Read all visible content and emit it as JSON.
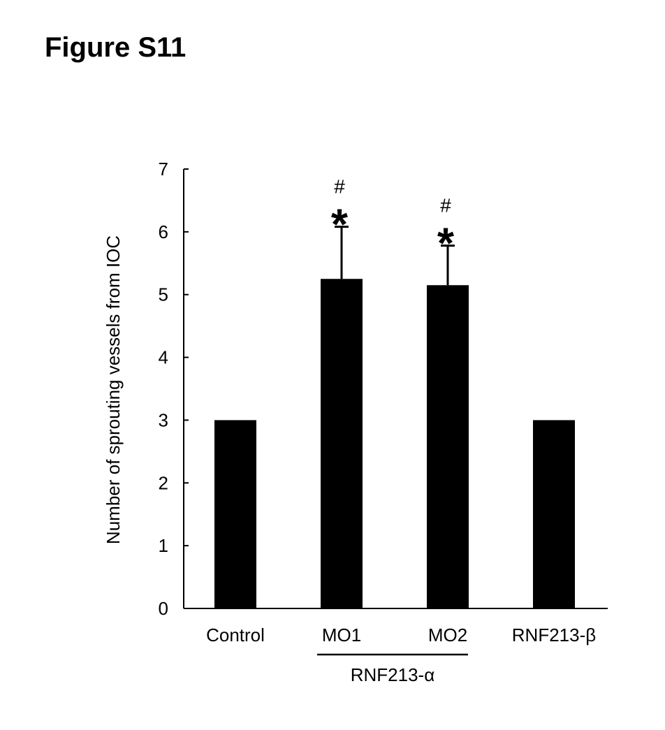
{
  "figure": {
    "label": "Figure S11"
  },
  "chart_data": {
    "type": "bar",
    "categories": [
      "Control",
      "MO1",
      "MO2",
      "RNF213-β"
    ],
    "values": [
      3.0,
      5.25,
      5.15,
      3.0
    ],
    "error_upper": [
      0,
      0.83,
      0.63,
      0
    ],
    "annotations": [
      {
        "category": "MO1",
        "symbols": [
          "#",
          "*"
        ]
      },
      {
        "category": "MO2",
        "symbols": [
          "#",
          "*"
        ]
      }
    ],
    "group": {
      "label": "RNF213-α",
      "categories": [
        "MO1",
        "MO2"
      ]
    },
    "title": "",
    "xlabel": "",
    "ylabel": "Number of sprouting vessels from IOC",
    "ylim": [
      0,
      7
    ],
    "yticks": [
      0,
      1,
      2,
      3,
      4,
      5,
      6,
      7
    ],
    "grid": false,
    "bar_color": "#000000"
  }
}
